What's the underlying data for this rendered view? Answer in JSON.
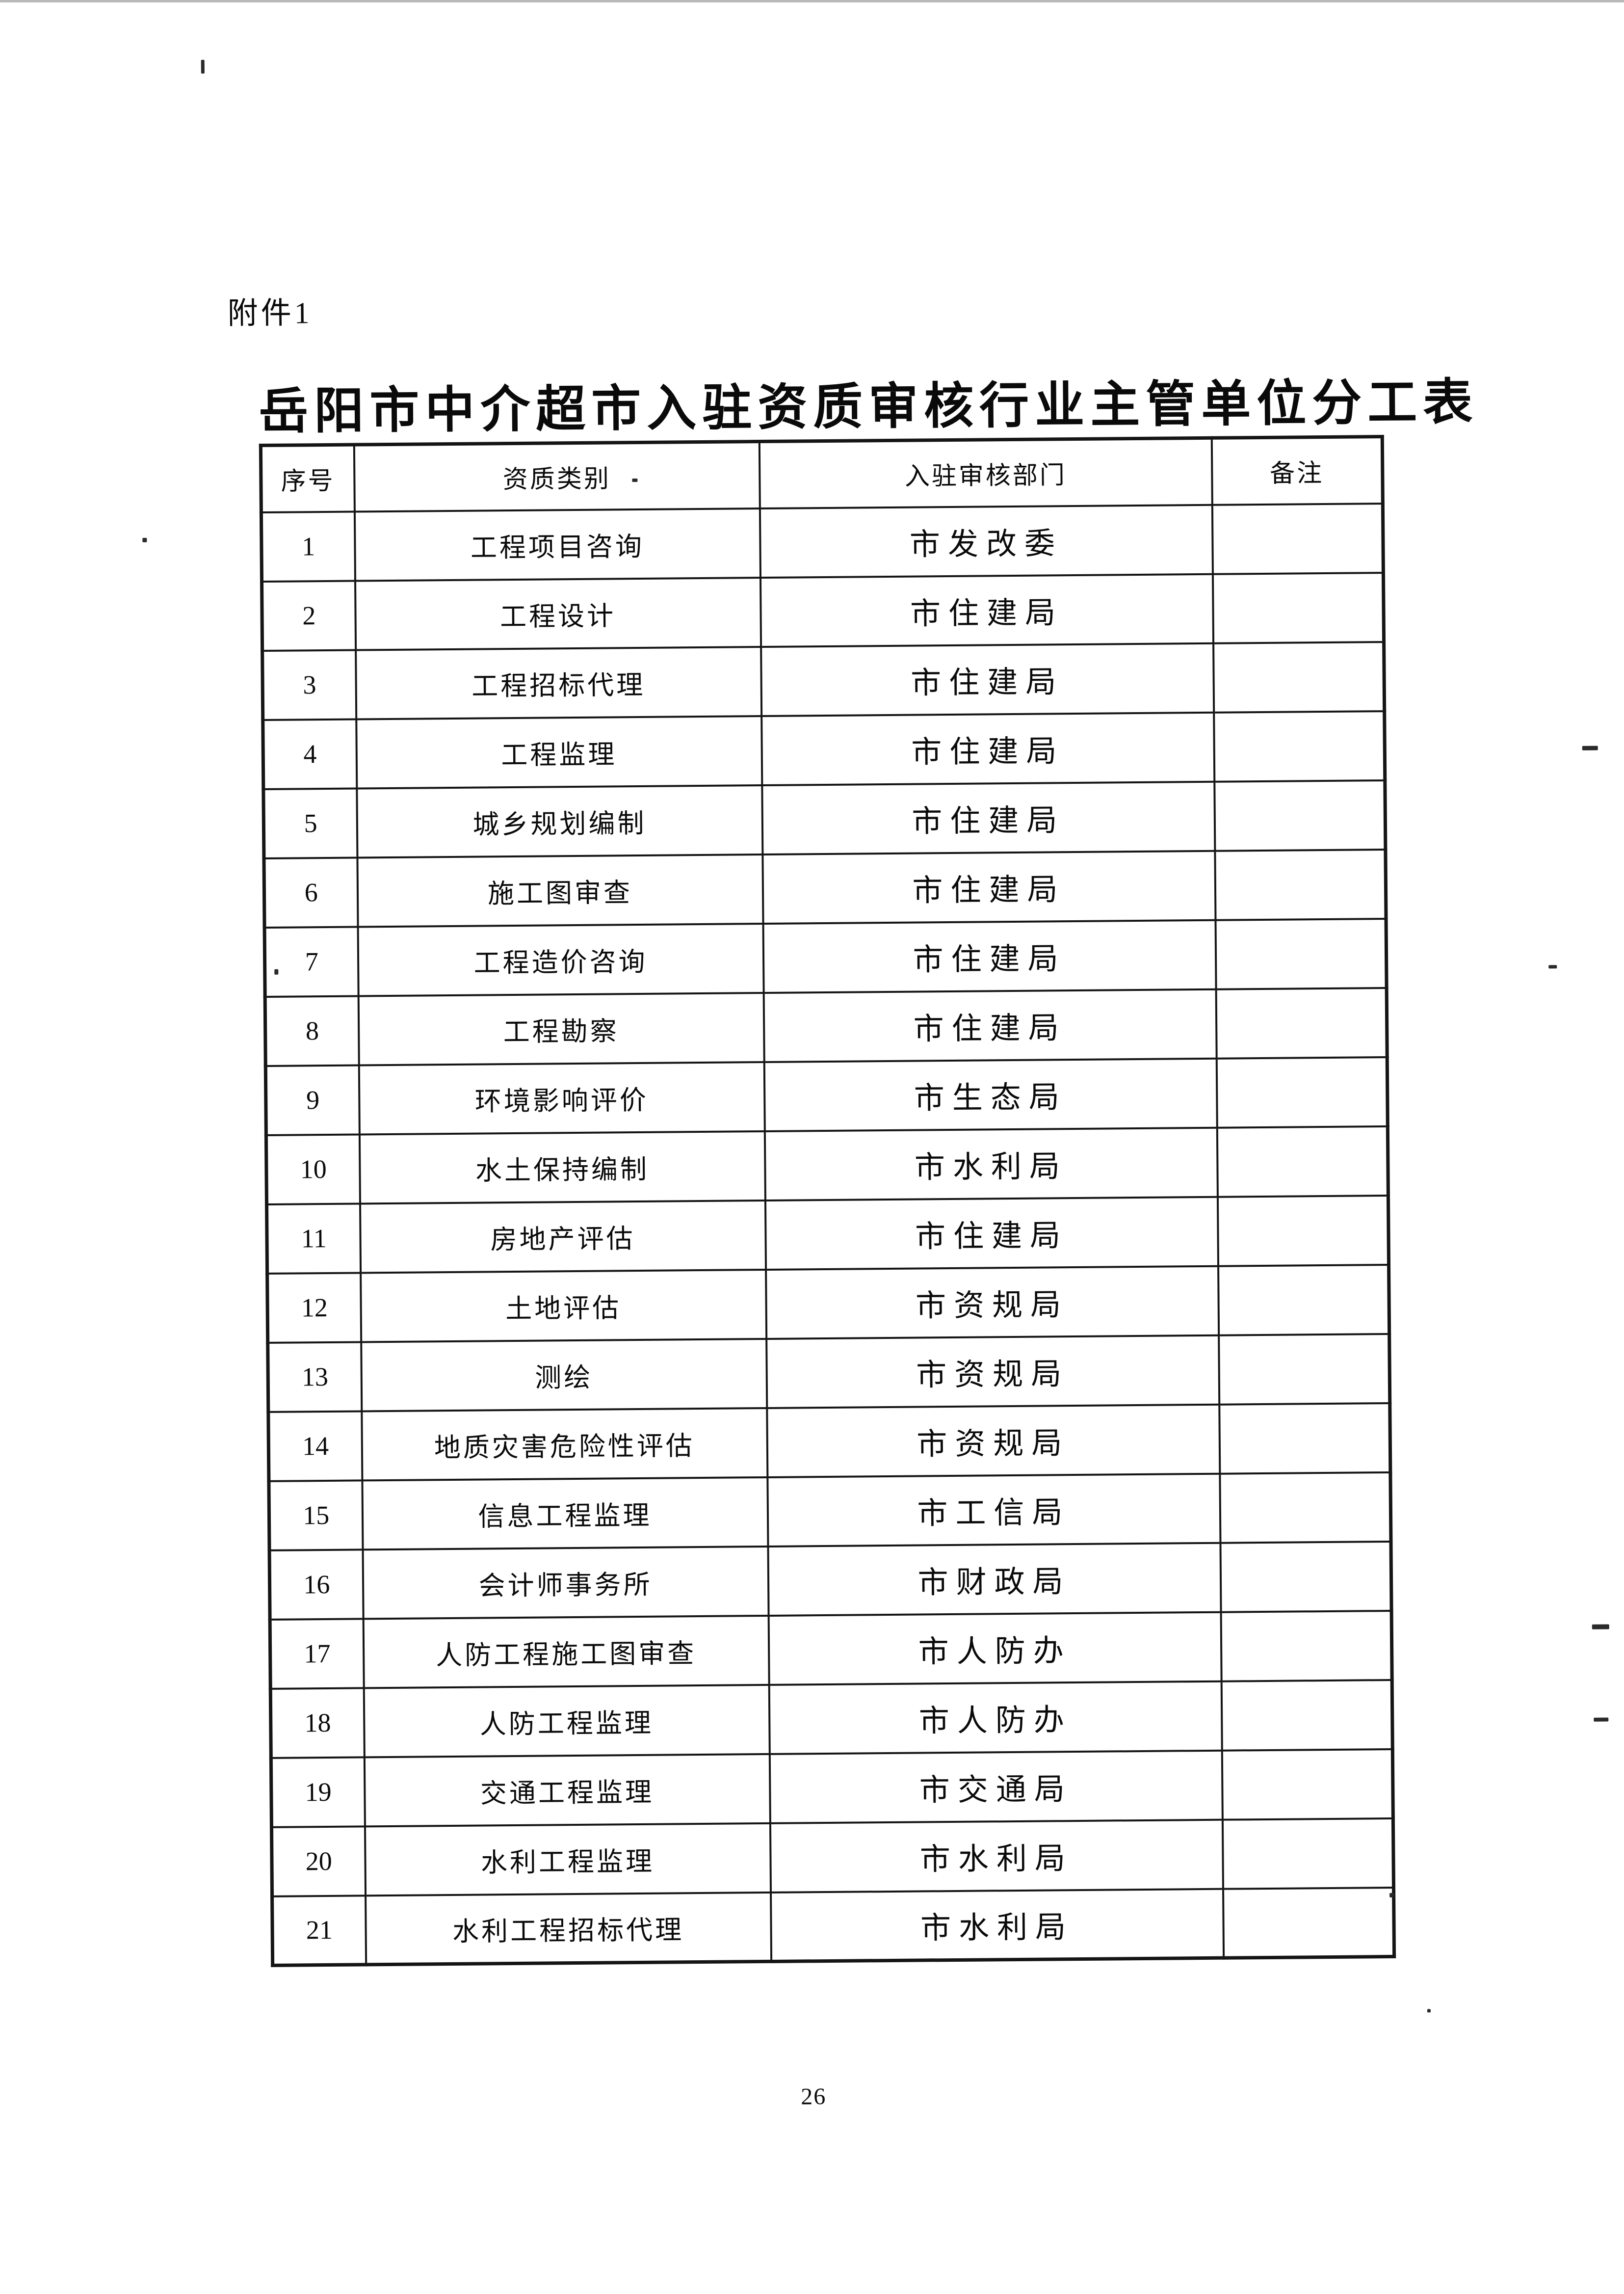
{
  "document": {
    "attachment_label": "附件1",
    "title": "岳阳市中介超市入驻资质审核行业主管单位分工表",
    "page_number": "26"
  },
  "table": {
    "columns": [
      "序号",
      "资质类别",
      "入驻审核部门",
      "备注"
    ],
    "rows": [
      {
        "seq": "1",
        "category": "工程项目咨询",
        "department": "市发改委",
        "remark": ""
      },
      {
        "seq": "2",
        "category": "工程设计",
        "department": "市住建局",
        "remark": ""
      },
      {
        "seq": "3",
        "category": "工程招标代理",
        "department": "市住建局",
        "remark": ""
      },
      {
        "seq": "4",
        "category": "工程监理",
        "department": "市住建局",
        "remark": ""
      },
      {
        "seq": "5",
        "category": "城乡规划编制",
        "department": "市住建局",
        "remark": ""
      },
      {
        "seq": "6",
        "category": "施工图审查",
        "department": "市住建局",
        "remark": ""
      },
      {
        "seq": "7",
        "category": "工程造价咨询",
        "department": "市住建局",
        "remark": ""
      },
      {
        "seq": "8",
        "category": "工程勘察",
        "department": "市住建局",
        "remark": ""
      },
      {
        "seq": "9",
        "category": "环境影响评价",
        "department": "市生态局",
        "remark": ""
      },
      {
        "seq": "10",
        "category": "水土保持编制",
        "department": "市水利局",
        "remark": ""
      },
      {
        "seq": "11",
        "category": "房地产评估",
        "department": "市住建局",
        "remark": ""
      },
      {
        "seq": "12",
        "category": "土地评估",
        "department": "市资规局",
        "remark": ""
      },
      {
        "seq": "13",
        "category": "测绘",
        "department": "市资规局",
        "remark": ""
      },
      {
        "seq": "14",
        "category": "地质灾害危险性评估",
        "department": "市资规局",
        "remark": ""
      },
      {
        "seq": "15",
        "category": "信息工程监理",
        "department": "市工信局",
        "remark": ""
      },
      {
        "seq": "16",
        "category": "会计师事务所",
        "department": "市财政局",
        "remark": ""
      },
      {
        "seq": "17",
        "category": "人防工程施工图审查",
        "department": "市人防办",
        "remark": ""
      },
      {
        "seq": "18",
        "category": "人防工程监理",
        "department": "市人防办",
        "remark": ""
      },
      {
        "seq": "19",
        "category": "交通工程监理",
        "department": "市交通局",
        "remark": ""
      },
      {
        "seq": "20",
        "category": "水利工程监理",
        "department": "市水利局",
        "remark": ""
      },
      {
        "seq": "21",
        "category": "水利工程招标代理",
        "department": "市水利局",
        "remark": ""
      }
    ]
  }
}
